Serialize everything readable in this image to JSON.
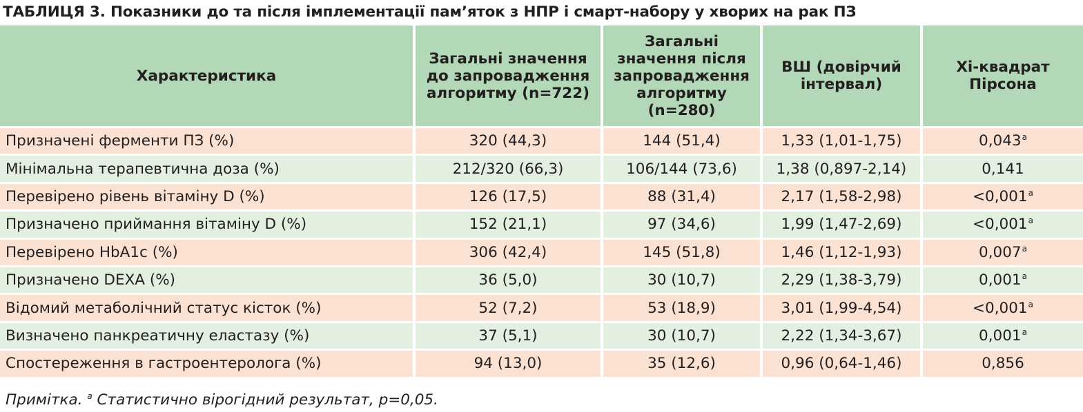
{
  "caption": "ТАБЛИЦЯ 3. Показники до та після імплементації пам’яток з НПР і смарт-набору у хворих на рак ПЗ",
  "headers": {
    "characteristic": "Характеристика",
    "before": "Загальні значення до запровадження алгоритму (n=722)",
    "after": "Загальні значення після запровадження алгоритму (n=280)",
    "or_ci": "ВШ (довірчий інтервал)",
    "chi_square": "Хі-квадрат Пірсона"
  },
  "rows": [
    {
      "characteristic": "Призначені ферменти ПЗ (%)",
      "before": "320 (44,3)",
      "after": "144 (51,4)",
      "or_ci": "1,33 (1,01-1,75)",
      "chi": "0,043",
      "sig": "a"
    },
    {
      "characteristic": "Мінімальна терапевтична доза (%)",
      "before": "212/320 (66,3)",
      "after": "106/144 (73,6)",
      "or_ci": "1,38 (0,897-2,14)",
      "chi": "0,141",
      "sig": ""
    },
    {
      "characteristic": "Перевірено рівень вітаміну D (%)",
      "before": "126 (17,5)",
      "after": "88 (31,4)",
      "or_ci": "2,17 (1,58-2,98)",
      "chi": "<0,001",
      "sig": "a"
    },
    {
      "characteristic": "Призначено приймання вітаміну D (%)",
      "before": "152 (21,1)",
      "after": "97 (34,6)",
      "or_ci": "1,99 (1,47-2,69)",
      "chi": "<0,001",
      "sig": "a"
    },
    {
      "characteristic": "Перевірено HbA1c (%)",
      "before": "306 (42,4)",
      "after": "145 (51,8)",
      "or_ci": "1,46 (1,12-1,93)",
      "chi": "0,007",
      "sig": "a"
    },
    {
      "characteristic": "Призначено DEXA (%)",
      "before": "36 (5,0)",
      "after": "30 (10,7)",
      "or_ci": "2,29 (1,38-3,79)",
      "chi": "0,001",
      "sig": "a"
    },
    {
      "characteristic": "Відомий метаболічний статус кісток (%)",
      "before": "52 (7,2)",
      "after": "53 (18,9)",
      "or_ci": "3,01 (1,99-4,54)",
      "chi": "<0,001",
      "sig": "a"
    },
    {
      "characteristic": "Визначено панкреатичну еластазу (%)",
      "before": "37 (5,1)",
      "after": "30 (10,7)",
      "or_ci": "2,22 (1,34-3,67)",
      "chi": "0,001",
      "sig": "a"
    },
    {
      "characteristic": "Спостереження в гастроентеролога (%)",
      "before": "94 (13,0)",
      "after": "35 (12,6)",
      "or_ci": "0,96 (0,64-1,46)",
      "chi": "0,856",
      "sig": ""
    }
  ],
  "note": {
    "prefix": "Примітка.",
    "mark": "a",
    "text": "Статистично вірогідний результат, р=0,05."
  },
  "colors": {
    "header_bg": "#b2d8b7",
    "row_odd_bg": "#fbe1d2",
    "row_even_bg": "#e3efdf"
  }
}
